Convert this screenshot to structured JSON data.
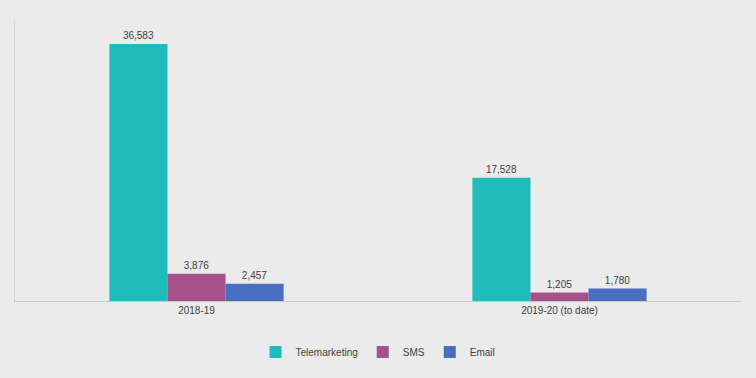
{
  "chart_data": {
    "type": "bar",
    "categories": [
      "2018-19",
      "2019-20 (to date)"
    ],
    "series": [
      {
        "name": "Telemarketing",
        "color": "#20bcbc",
        "values": [
          36583,
          17528
        ],
        "value_labels": [
          "36,583",
          "17,528"
        ]
      },
      {
        "name": "SMS",
        "color": "#a5528a",
        "values": [
          3876,
          1205
        ],
        "value_labels": [
          "3,876",
          "1,205"
        ]
      },
      {
        "name": "Email",
        "color": "#4a6fc0",
        "values": [
          2457,
          1780
        ],
        "value_labels": [
          "2,457",
          "1,780"
        ]
      }
    ],
    "ylim": [
      0,
      40000
    ],
    "grid": false,
    "legend": "bottom",
    "data_labels": true,
    "tick_labels": "x"
  }
}
